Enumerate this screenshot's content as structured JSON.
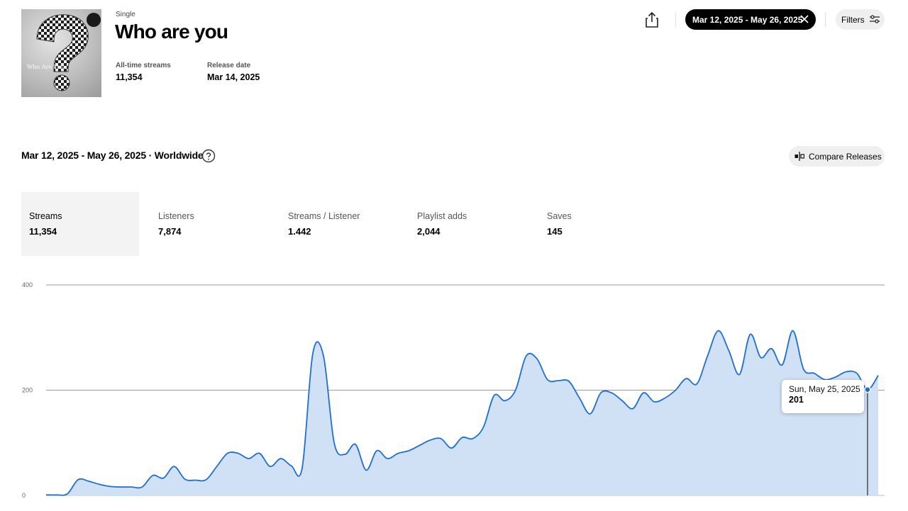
{
  "release": {
    "kind": "Single",
    "title": "Who are you",
    "cover_text": "Who Are You",
    "all_time_label": "All-time streams",
    "all_time_value": "11,354",
    "release_label": "Release date",
    "release_value": "Mar 14, 2025"
  },
  "toolbar": {
    "date_range": "Mar 12, 2025 - May 26, 2025",
    "filters_label": "Filters",
    "share_icon": "share-icon",
    "clear_icon": "close-icon",
    "filters_icon": "sliders-icon"
  },
  "section": {
    "heading": "Mar 12, 2025 - May 26, 2025 · Worldwide",
    "help_icon": "question-icon",
    "compare_label": "Compare Releases",
    "compare_icon": "compare-icon"
  },
  "metrics": [
    {
      "label": "Streams",
      "value": "11,354",
      "active": true
    },
    {
      "label": "Listeners",
      "value": "7,874",
      "active": false
    },
    {
      "label": "Streams / Listener",
      "value": "1.442",
      "active": false
    },
    {
      "label": "Playlist adds",
      "value": "2,044",
      "active": false
    },
    {
      "label": "Saves",
      "value": "145",
      "active": false
    }
  ],
  "tooltip": {
    "date": "Sun, May 25, 2025",
    "value": "201"
  },
  "chart_data": {
    "type": "area",
    "title": "",
    "xlabel": "",
    "ylabel": "",
    "x_start": "2025-03-12",
    "x_end": "2025-05-26",
    "ylim": [
      0,
      400
    ],
    "yticks": [
      0,
      200,
      400
    ],
    "grid": true,
    "line_color": "#1f6fd0",
    "fill_color": "#d0e1f6",
    "highlight_date": "2025-05-25",
    "series": [
      {
        "values": [
          1,
          1,
          3,
          30,
          27,
          21,
          17,
          16,
          16,
          16,
          38,
          33,
          55,
          31,
          29,
          30,
          55,
          80,
          80,
          70,
          80,
          55,
          70,
          56,
          52,
          270,
          265,
          100,
          78,
          97,
          48,
          85,
          70,
          80,
          85,
          95,
          105,
          108,
          90,
          110,
          108,
          130,
          190,
          180,
          200,
          265,
          260,
          220,
          218,
          217,
          185,
          155,
          195,
          195,
          180,
          165,
          195,
          178,
          185,
          200,
          222,
          212,
          265,
          313,
          275,
          230,
          306,
          262,
          279,
          248,
          313,
          240,
          232,
          220,
          225,
          235,
          232,
          201,
          228
        ]
      }
    ]
  }
}
